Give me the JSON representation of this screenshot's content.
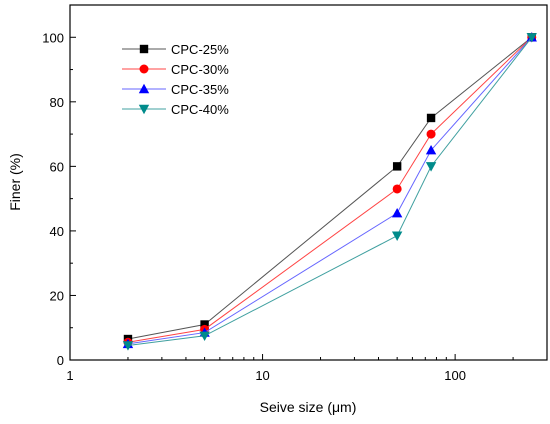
{
  "chart_data": {
    "type": "line",
    "x_scale": "log",
    "xlabel": "Seive size (μm)",
    "ylabel": "Finer (%)",
    "xlim": [
      1,
      300
    ],
    "ylim": [
      0,
      110
    ],
    "x_ticks": [
      1,
      10,
      100
    ],
    "x_tick_labels": [
      "1",
      "10",
      "100"
    ],
    "y_ticks": [
      0,
      20,
      40,
      60,
      80,
      100
    ],
    "y_tick_labels": [
      "0",
      "20",
      "40",
      "60",
      "80",
      "100"
    ],
    "grid": false,
    "legend_position": "top-left",
    "series": [
      {
        "name": "CPC-25%",
        "color": "#000000",
        "line_color": "#555555",
        "marker": "square",
        "x": [
          2,
          5,
          50,
          75,
          250
        ],
        "y": [
          6.5,
          11,
          60,
          75,
          100
        ]
      },
      {
        "name": "CPC-30%",
        "color": "#ff0000",
        "line_color": "#ff4444",
        "marker": "circle",
        "x": [
          2,
          5,
          50,
          75,
          250
        ],
        "y": [
          5.5,
          9.5,
          53,
          70,
          100
        ]
      },
      {
        "name": "CPC-35%",
        "color": "#0000ff",
        "line_color": "#6666ff",
        "marker": "triangle-up",
        "x": [
          2,
          5,
          50,
          75,
          250
        ],
        "y": [
          5,
          8.5,
          45.5,
          65,
          100
        ]
      },
      {
        "name": "CPC-40%",
        "color": "#008b8b",
        "line_color": "#40a0a0",
        "marker": "triangle-down",
        "x": [
          2,
          5,
          50,
          75,
          250
        ],
        "y": [
          4.5,
          7.5,
          38.5,
          60,
          100
        ]
      }
    ]
  }
}
